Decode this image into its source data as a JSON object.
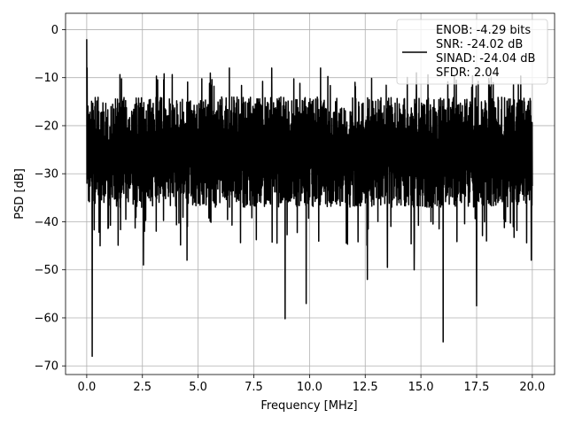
{
  "chart_data": {
    "type": "line",
    "title": "",
    "xlabel": "Frequency [MHz]",
    "ylabel": "PSD [dB]",
    "xlim": [
      -0.95,
      21.0
    ],
    "ylim": [
      -71.8,
      3.4
    ],
    "xticks": [
      0.0,
      2.5,
      5.0,
      7.5,
      10.0,
      12.5,
      15.0,
      17.5,
      20.0
    ],
    "xtick_labels": [
      "0.0",
      "2.5",
      "5.0",
      "7.5",
      "10.0",
      "12.5",
      "15.0",
      "17.5",
      "20.0"
    ],
    "yticks": [
      0,
      -10,
      -20,
      -30,
      -40,
      -50,
      -60,
      -70
    ],
    "ytick_labels": [
      "0",
      "−10",
      "−20",
      "−30",
      "−40",
      "−50",
      "−60",
      "−70"
    ],
    "grid": true,
    "legend_position": "top-right",
    "legend": {
      "line_color": "#000000",
      "lines": [
        "ENOB: -4.29 bits",
        "SNR: -24.02 dB",
        "SINAD: -24.04 dB",
        "SFDR: 2.04"
      ]
    },
    "series": [
      {
        "color": "#000000",
        "description": "dense noise-like PSD trace spanning 0 to 20 MHz; band roughly -15 to -40 dB, peaks near -8 dB, deep dips down to about -68 dB; DC spike near -2 dB",
        "x_range": [
          0.0,
          20.0
        ],
        "dc_peak": {
          "x": 0.0,
          "y": -2.0
        },
        "notable_dips": [
          {
            "x": 0.25,
            "y": -68.0
          },
          {
            "x": 0.6,
            "y": -45.0
          },
          {
            "x": 2.55,
            "y": -49.0
          },
          {
            "x": 4.5,
            "y": -48.0
          },
          {
            "x": 8.9,
            "y": -60.2
          },
          {
            "x": 9.85,
            "y": -57.0
          },
          {
            "x": 12.6,
            "y": -52.0
          },
          {
            "x": 13.5,
            "y": -49.5
          },
          {
            "x": 14.7,
            "y": -50.0
          },
          {
            "x": 16.0,
            "y": -65.0
          },
          {
            "x": 17.5,
            "y": -57.5
          },
          {
            "x": 19.95,
            "y": -48.0
          }
        ],
        "notable_peaks": [
          {
            "x": 6.4,
            "y": -8.0
          },
          {
            "x": 8.3,
            "y": -8.0
          },
          {
            "x": 10.5,
            "y": -8.0
          },
          {
            "x": 14.8,
            "y": -9.0
          }
        ]
      }
    ]
  }
}
